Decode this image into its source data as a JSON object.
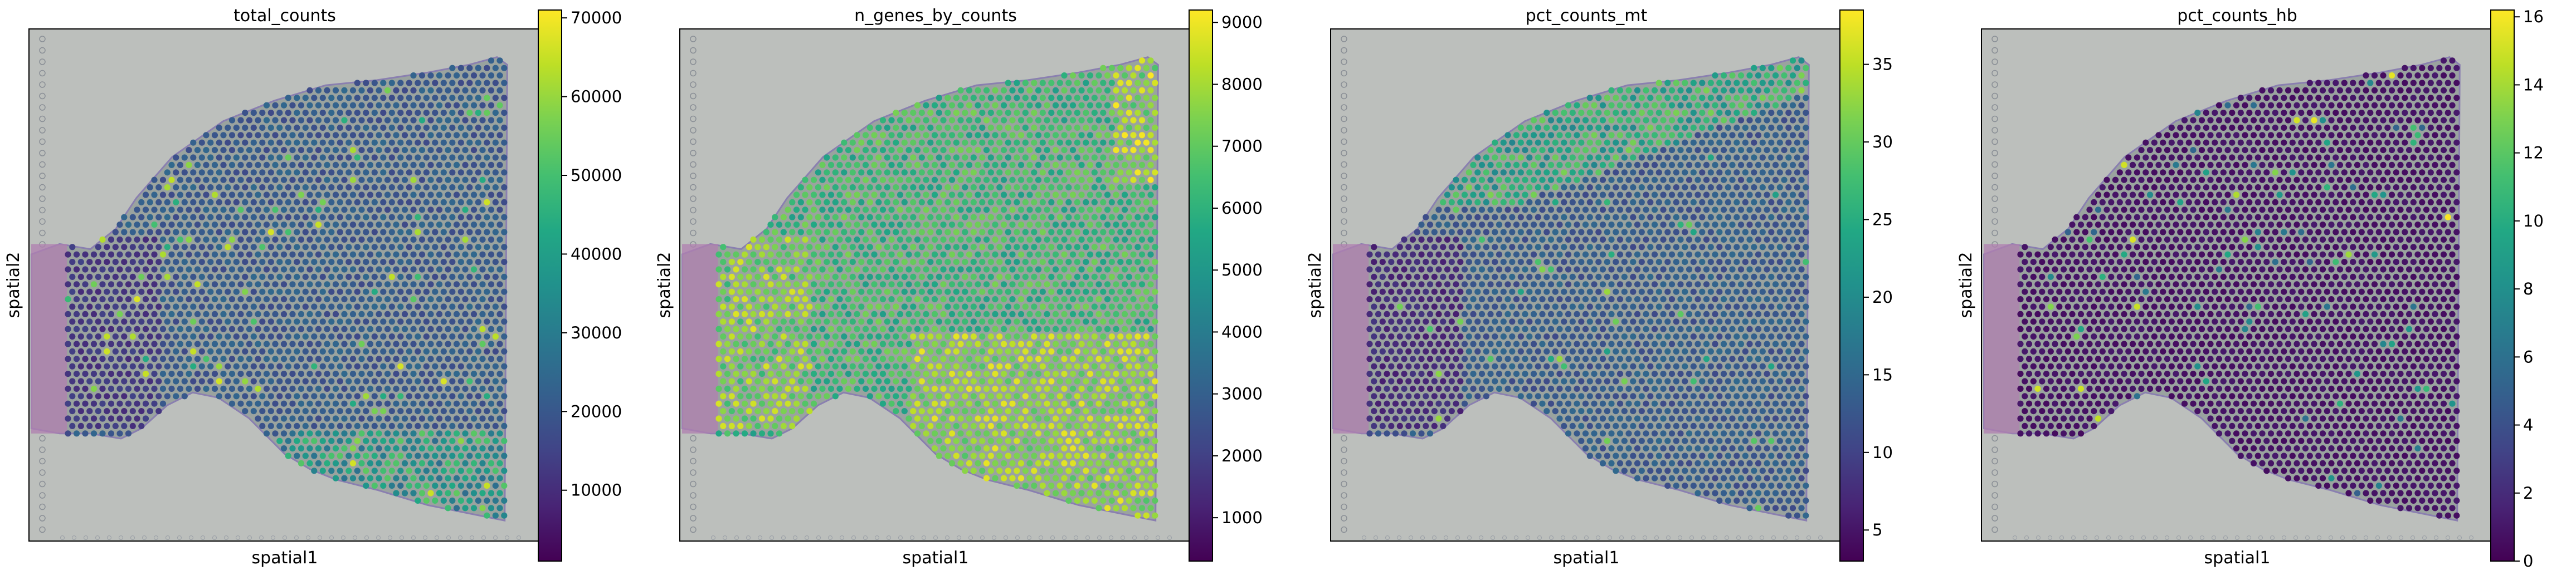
{
  "chart_data": [
    {
      "type": "scatter",
      "title": "total_counts",
      "xlabel": "spatial1",
      "ylabel": "spatial2",
      "colormap": "viridis",
      "colorbar": {
        "min": 1000,
        "max": 71000,
        "ticks": [
          10000,
          20000,
          30000,
          40000,
          50000,
          60000,
          70000
        ]
      },
      "spot_pattern": "low-moderate across tissue; brighter spots near the bottom edge"
    },
    {
      "type": "scatter",
      "title": "n_genes_by_counts",
      "xlabel": "spatial1",
      "ylabel": "spatial2",
      "colormap": "viridis",
      "colorbar": {
        "min": 300,
        "max": 9200,
        "ticks": [
          1000,
          2000,
          3000,
          4000,
          5000,
          6000,
          7000,
          8000,
          9000
        ]
      },
      "spot_pattern": "moderate-high across tissue; bright in left and lower regions"
    },
    {
      "type": "scatter",
      "title": "pct_counts_mt",
      "xlabel": "spatial1",
      "ylabel": "spatial2",
      "colormap": "viridis",
      "colorbar": {
        "min": 3,
        "max": 38.5,
        "ticks": [
          5,
          10,
          15,
          20,
          25,
          30,
          35
        ]
      },
      "spot_pattern": "low-moderate; brighter along the upper boundary"
    },
    {
      "type": "scatter",
      "title": "pct_counts_hb",
      "xlabel": "spatial1",
      "ylabel": "spatial2",
      "colormap": "viridis",
      "colorbar": {
        "min": 0,
        "max": 16.2,
        "ticks": [
          0,
          2,
          4,
          6,
          8,
          10,
          12,
          14,
          16
        ]
      },
      "spot_pattern": "mostly near zero with a few scattered bright spots"
    }
  ],
  "colors": {
    "background_tissue": "#bcbfbc",
    "tissue_pink": "#b07fb0",
    "viridis_low": "#440154",
    "viridis_high": "#fde725"
  }
}
